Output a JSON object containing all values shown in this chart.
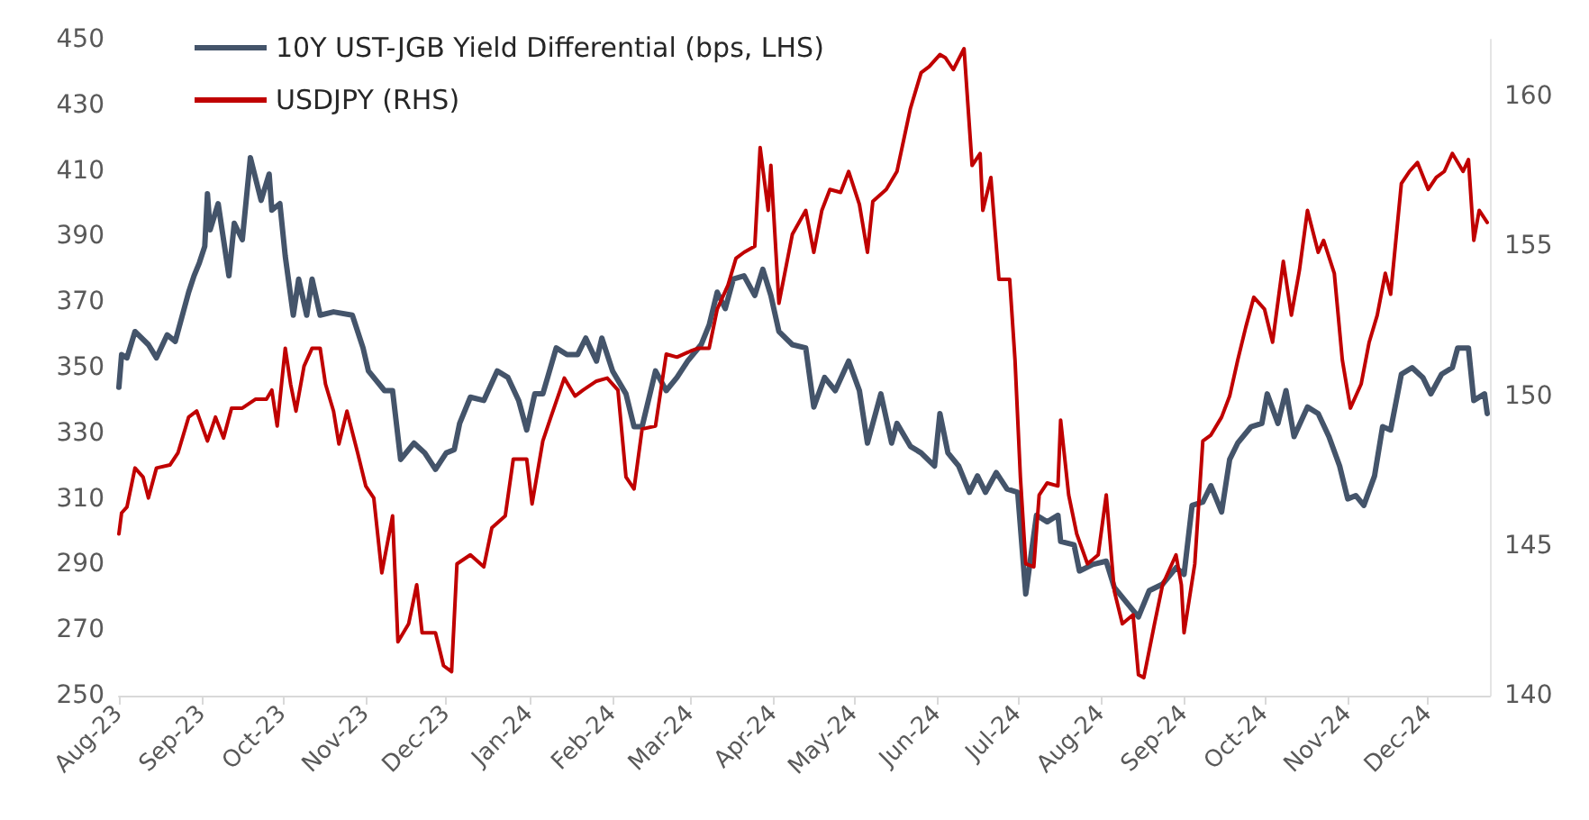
{
  "chart_data": {
    "type": "line",
    "legend": "top left",
    "grid": false,
    "xlim": [
      "2023-08-01",
      "2024-12-24"
    ],
    "xticks": [
      {
        "value": "2023-08-01",
        "label": "Aug-23"
      },
      {
        "value": "2023-09-01",
        "label": "Sep-23"
      },
      {
        "value": "2023-10-01",
        "label": "Oct-23"
      },
      {
        "value": "2023-11-01",
        "label": "Nov-23"
      },
      {
        "value": "2023-12-01",
        "label": "Dec-23"
      },
      {
        "value": "2024-01-01",
        "label": "Jan-24"
      },
      {
        "value": "2024-02-01",
        "label": "Feb-24"
      },
      {
        "value": "2024-03-01",
        "label": "Mar-24"
      },
      {
        "value": "2024-04-01",
        "label": "Apr-24"
      },
      {
        "value": "2024-05-01",
        "label": "May-24"
      },
      {
        "value": "2024-06-01",
        "label": "Jun-24"
      },
      {
        "value": "2024-07-01",
        "label": "Jul-24"
      },
      {
        "value": "2024-08-01",
        "label": "Aug-24"
      },
      {
        "value": "2024-09-01",
        "label": "Sep-24"
      },
      {
        "value": "2024-10-01",
        "label": "Oct-24"
      },
      {
        "value": "2024-11-01",
        "label": "Nov-24"
      },
      {
        "value": "2024-12-01",
        "label": "Dec-24"
      }
    ],
    "ylim": [
      250,
      450
    ],
    "yticks": [
      250,
      270,
      290,
      310,
      330,
      350,
      370,
      390,
      410,
      430,
      450
    ],
    "y2lim": [
      140,
      161.9
    ],
    "y2ticks": [
      140,
      145,
      150,
      155,
      160
    ],
    "series": [
      {
        "name": "10Y UST-JGB Yield Differential (bps, LHS)",
        "color": "#44546a",
        "x": [
          "2023-08-01",
          "2023-08-02",
          "2023-08-04",
          "2023-08-07",
          "2023-08-12",
          "2023-08-15",
          "2023-08-19",
          "2023-08-22",
          "2023-08-24",
          "2023-08-27",
          "2023-08-29",
          "2023-08-31",
          "2023-09-02",
          "2023-09-03",
          "2023-09-04",
          "2023-09-07",
          "2023-09-11",
          "2023-09-13",
          "2023-09-16",
          "2023-09-19",
          "2023-09-23",
          "2023-09-26",
          "2023-09-27",
          "2023-09-30",
          "2023-10-02",
          "2023-10-05",
          "2023-10-07",
          "2023-10-10",
          "2023-10-12",
          "2023-10-15",
          "2023-10-20",
          "2023-10-27",
          "2023-10-31",
          "2023-11-02",
          "2023-11-08",
          "2023-11-11",
          "2023-11-14",
          "2023-11-19",
          "2023-11-23",
          "2023-11-27",
          "2023-12-01",
          "2023-12-04",
          "2023-12-06",
          "2023-12-10",
          "2023-12-15",
          "2023-12-20",
          "2023-12-24",
          "2023-12-28",
          "2023-12-31",
          "2024-01-03",
          "2024-01-06",
          "2024-01-11",
          "2024-01-15",
          "2024-01-19",
          "2024-01-22",
          "2024-01-26",
          "2024-01-28",
          "2024-02-01",
          "2024-02-06",
          "2024-02-09",
          "2024-02-12",
          "2024-02-17",
          "2024-02-21",
          "2024-02-25",
          "2024-02-29",
          "2024-03-05",
          "2024-03-08",
          "2024-03-11",
          "2024-03-14",
          "2024-03-17",
          "2024-03-21",
          "2024-03-25",
          "2024-03-28",
          "2024-03-31",
          "2024-04-03",
          "2024-04-08",
          "2024-04-13",
          "2024-04-16",
          "2024-04-20",
          "2024-04-24",
          "2024-04-29",
          "2024-05-03",
          "2024-05-06",
          "2024-05-11",
          "2024-05-15",
          "2024-05-17",
          "2024-05-22",
          "2024-05-26",
          "2024-05-31",
          "2024-06-02",
          "2024-06-05",
          "2024-06-09",
          "2024-06-13",
          "2024-06-16",
          "2024-06-19",
          "2024-06-23",
          "2024-06-27",
          "2024-07-01",
          "2024-07-04",
          "2024-07-08",
          "2024-07-12",
          "2024-07-16",
          "2024-07-17",
          "2024-07-22",
          "2024-07-24",
          "2024-07-29",
          "2024-08-03",
          "2024-08-06",
          "2024-08-11",
          "2024-08-15",
          "2024-08-19",
          "2024-08-24",
          "2024-08-29",
          "2024-09-01",
          "2024-09-04",
          "2024-09-08",
          "2024-09-11",
          "2024-09-15",
          "2024-09-18",
          "2024-09-21",
          "2024-09-26",
          "2024-09-30",
          "2024-10-02",
          "2024-10-06",
          "2024-10-09",
          "2024-10-12",
          "2024-10-17",
          "2024-10-21",
          "2024-10-25",
          "2024-10-29",
          "2024-11-01",
          "2024-11-04",
          "2024-11-07",
          "2024-11-11",
          "2024-11-14",
          "2024-11-17",
          "2024-11-21",
          "2024-11-25",
          "2024-11-29",
          "2024-12-02",
          "2024-12-06",
          "2024-12-10",
          "2024-12-12",
          "2024-12-16",
          "2024-12-18",
          "2024-12-22",
          "2024-12-23"
        ],
        "values": [
          344,
          354,
          353,
          361,
          357,
          353,
          360,
          358,
          364,
          373,
          378,
          382,
          387,
          403,
          392,
          400,
          378,
          394,
          389,
          414,
          401,
          409,
          398,
          400,
          384,
          366,
          377,
          366,
          377,
          366,
          367,
          366,
          356,
          349,
          343,
          343,
          322,
          327,
          324,
          319,
          324,
          325,
          333,
          341,
          340,
          349,
          347,
          340,
          331,
          342,
          342,
          356,
          354,
          354,
          359,
          352,
          359,
          349,
          342,
          332,
          332,
          349,
          343,
          347,
          352,
          357,
          363,
          373,
          368,
          377,
          378,
          372,
          380,
          372,
          361,
          357,
          356,
          338,
          347,
          343,
          352,
          343,
          327,
          342,
          327,
          333,
          326,
          324,
          320,
          336,
          324,
          320,
          312,
          317,
          312,
          318,
          313,
          312,
          281,
          305,
          303,
          305,
          297,
          296,
          288,
          290,
          291,
          283,
          278,
          274,
          282,
          284,
          289,
          287,
          308,
          309,
          314,
          306,
          322,
          327,
          332,
          333,
          342,
          333,
          343,
          329,
          338,
          336,
          329,
          320,
          310,
          311,
          308,
          317,
          332,
          331,
          348,
          350,
          347,
          342,
          348,
          350,
          356,
          356,
          340,
          342,
          336
        ]
      },
      {
        "name": "USDJPY (RHS)",
        "color": "#c00000",
        "axis": "y2",
        "x": [
          "2023-08-01",
          "2023-08-02",
          "2023-08-04",
          "2023-08-07",
          "2023-08-10",
          "2023-08-12",
          "2023-08-15",
          "2023-08-20",
          "2023-08-23",
          "2023-08-27",
          "2023-08-30",
          "2023-09-03",
          "2023-09-06",
          "2023-09-09",
          "2023-09-12",
          "2023-09-16",
          "2023-09-21",
          "2023-09-25",
          "2023-09-27",
          "2023-09-29",
          "2023-10-02",
          "2023-10-04",
          "2023-10-06",
          "2023-10-09",
          "2023-10-12",
          "2023-10-15",
          "2023-10-17",
          "2023-10-20",
          "2023-10-22",
          "2023-10-25",
          "2023-10-29",
          "2023-11-01",
          "2023-11-04",
          "2023-11-07",
          "2023-11-11",
          "2023-11-13",
          "2023-11-17",
          "2023-11-20",
          "2023-11-22",
          "2023-11-27",
          "2023-11-30",
          "2023-12-03",
          "2023-12-05",
          "2023-12-10",
          "2023-12-15",
          "2023-12-18",
          "2023-12-23",
          "2023-12-26",
          "2023-12-31",
          "2024-01-02",
          "2024-01-06",
          "2024-01-09",
          "2024-01-14",
          "2024-01-18",
          "2024-01-21",
          "2024-01-26",
          "2024-01-30",
          "2024-02-03",
          "2024-02-06",
          "2024-02-09",
          "2024-02-12",
          "2024-02-17",
          "2024-02-21",
          "2024-02-25",
          "2024-03-01",
          "2024-03-04",
          "2024-03-08",
          "2024-03-11",
          "2024-03-15",
          "2024-03-18",
          "2024-03-21",
          "2024-03-25",
          "2024-03-27",
          "2024-03-30",
          "2024-03-31",
          "2024-04-03",
          "2024-04-08",
          "2024-04-13",
          "2024-04-16",
          "2024-04-19",
          "2024-04-22",
          "2024-04-26",
          "2024-04-29",
          "2024-05-03",
          "2024-05-06",
          "2024-05-08",
          "2024-05-13",
          "2024-05-17",
          "2024-05-22",
          "2024-05-26",
          "2024-05-29",
          "2024-06-02",
          "2024-06-04",
          "2024-06-07",
          "2024-06-11",
          "2024-06-14",
          "2024-06-17",
          "2024-06-18",
          "2024-06-21",
          "2024-06-24",
          "2024-06-28",
          "2024-06-30",
          "2024-07-02",
          "2024-07-04",
          "2024-07-07",
          "2024-07-09",
          "2024-07-12",
          "2024-07-16",
          "2024-07-17",
          "2024-07-20",
          "2024-07-23",
          "2024-07-27",
          "2024-07-31",
          "2024-08-03",
          "2024-08-06",
          "2024-08-09",
          "2024-08-13",
          "2024-08-15",
          "2024-08-17",
          "2024-08-21",
          "2024-08-24",
          "2024-08-29",
          "2024-08-31",
          "2024-09-01",
          "2024-09-05",
          "2024-09-08",
          "2024-09-11",
          "2024-09-15",
          "2024-09-18",
          "2024-09-21",
          "2024-09-24",
          "2024-09-27",
          "2024-10-01",
          "2024-10-04",
          "2024-10-08",
          "2024-10-11",
          "2024-10-14",
          "2024-10-17",
          "2024-10-21",
          "2024-10-23",
          "2024-10-27",
          "2024-10-30",
          "2024-11-02",
          "2024-11-06",
          "2024-11-09",
          "2024-11-12",
          "2024-11-15",
          "2024-11-17",
          "2024-11-21",
          "2024-11-24",
          "2024-11-27",
          "2024-12-01",
          "2024-12-04",
          "2024-12-07",
          "2024-12-10",
          "2024-12-14",
          "2024-12-16",
          "2024-12-18",
          "2024-12-20",
          "2024-12-23"
        ],
        "values": [
          145.4,
          146.1,
          146.3,
          147.6,
          147.3,
          146.6,
          147.6,
          147.7,
          148.1,
          149.3,
          149.5,
          148.5,
          149.3,
          148.6,
          149.6,
          149.6,
          149.9,
          149.9,
          150.2,
          149.0,
          151.6,
          150.4,
          149.5,
          151.0,
          151.6,
          151.6,
          150.4,
          149.5,
          148.4,
          149.5,
          148.1,
          147.0,
          146.6,
          144.1,
          146.0,
          141.8,
          142.4,
          143.7,
          142.1,
          142.1,
          141.0,
          140.8,
          144.4,
          144.7,
          144.3,
          145.6,
          146.0,
          147.9,
          147.9,
          146.4,
          148.5,
          149.3,
          150.6,
          150.0,
          150.2,
          150.5,
          150.6,
          150.2,
          147.3,
          146.9,
          148.9,
          149.0,
          151.4,
          151.3,
          151.5,
          151.6,
          151.6,
          152.9,
          153.7,
          154.6,
          154.8,
          155.0,
          158.3,
          156.2,
          157.7,
          153.1,
          155.4,
          156.2,
          154.8,
          156.2,
          156.9,
          156.8,
          157.5,
          156.4,
          154.8,
          156.5,
          156.9,
          157.5,
          159.6,
          160.8,
          161.0,
          161.4,
          161.3,
          160.9,
          161.6,
          157.7,
          158.1,
          156.2,
          157.3,
          153.9,
          153.9,
          151.2,
          147.3,
          144.4,
          144.3,
          146.7,
          147.1,
          147.0,
          149.2,
          146.7,
          145.4,
          144.4,
          144.7,
          146.7,
          143.5,
          142.4,
          142.7,
          140.7,
          140.6,
          142.4,
          143.7,
          144.7,
          143.7,
          142.1,
          144.4,
          148.5,
          148.7,
          149.3,
          150.0,
          151.2,
          152.3,
          153.3,
          152.9,
          151.8,
          154.5,
          152.7,
          154.2,
          156.2,
          154.8,
          155.2,
          154.1,
          151.2,
          149.6,
          150.4,
          151.8,
          152.7,
          154.1,
          153.4,
          157.1,
          157.5,
          157.8,
          156.9,
          157.3,
          157.5,
          158.1,
          157.5,
          157.9,
          155.2,
          156.2,
          155.8
        ]
      }
    ]
  }
}
